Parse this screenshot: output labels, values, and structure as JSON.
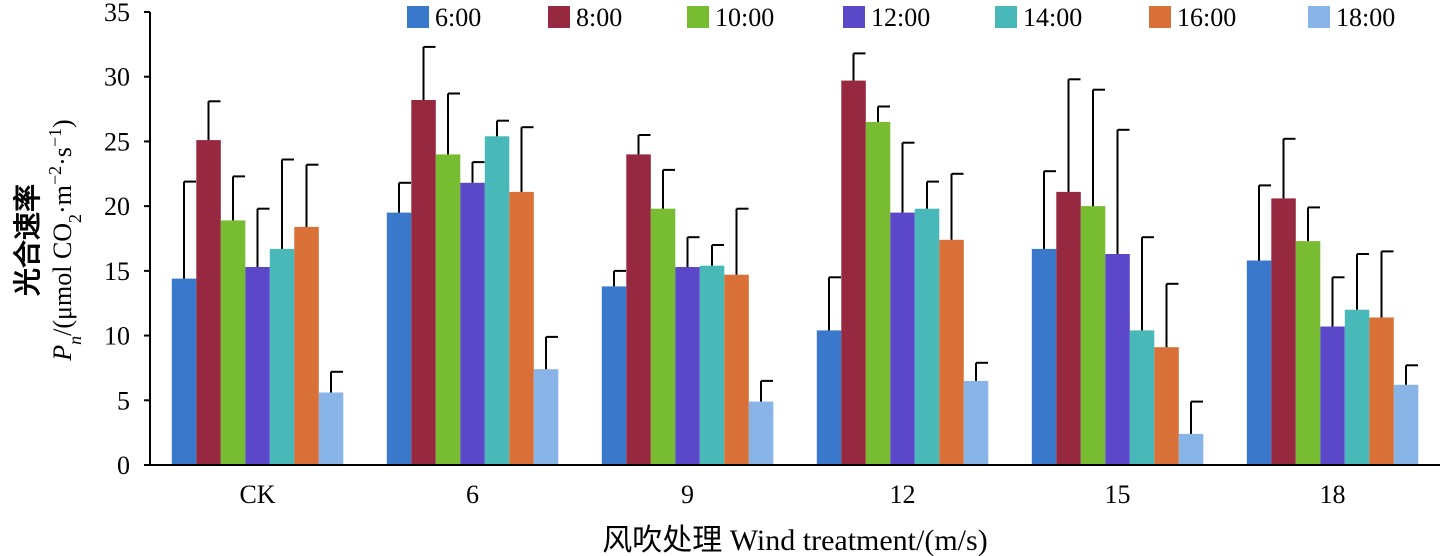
{
  "chart_data": {
    "type": "bar",
    "xlabel": "风吹处理 Wind treatment/(m/s)",
    "ylabel_line1": "光合速率",
    "ylabel_line2": "Pn/(μmol CO2·m-2·s-1)",
    "ylim": [
      0,
      35
    ],
    "yticks": [
      0,
      5,
      10,
      15,
      20,
      25,
      30,
      35
    ],
    "categories": [
      "CK",
      "6",
      "9",
      "12",
      "15",
      "18"
    ],
    "legend_position": "top",
    "grid": false,
    "series": [
      {
        "name": "6:00",
        "color": "#3a78cc",
        "values": [
          14.4,
          19.5,
          13.8,
          10.4,
          16.7,
          15.8
        ],
        "errors": [
          7.5,
          2.3,
          1.2,
          4.1,
          6.0,
          5.8
        ]
      },
      {
        "name": "8:00",
        "color": "#962840",
        "values": [
          25.1,
          28.2,
          24.0,
          29.7,
          21.1,
          20.6
        ],
        "errors": [
          3.0,
          4.1,
          1.5,
          2.1,
          8.7,
          4.6
        ]
      },
      {
        "name": "10:00",
        "color": "#78bc32",
        "values": [
          18.9,
          24.0,
          19.8,
          26.5,
          20.0,
          17.3
        ],
        "errors": [
          3.4,
          4.7,
          3.0,
          1.2,
          9.0,
          2.6
        ]
      },
      {
        "name": "12:00",
        "color": "#5b48c8",
        "values": [
          15.3,
          21.8,
          15.3,
          19.5,
          16.3,
          10.7
        ],
        "errors": [
          4.5,
          1.6,
          2.3,
          5.4,
          9.6,
          3.8
        ]
      },
      {
        "name": "14:00",
        "color": "#48b8b8",
        "values": [
          16.7,
          25.4,
          15.4,
          19.8,
          10.4,
          12.0
        ],
        "errors": [
          6.9,
          1.2,
          1.6,
          2.1,
          7.2,
          4.3
        ]
      },
      {
        "name": "16:00",
        "color": "#d87038",
        "values": [
          18.4,
          21.1,
          14.7,
          17.4,
          9.1,
          11.4
        ],
        "errors": [
          4.8,
          5.0,
          5.1,
          5.1,
          4.9,
          5.1
        ]
      },
      {
        "name": "18:00",
        "color": "#88b4e8",
        "values": [
          5.6,
          7.4,
          4.9,
          6.5,
          2.4,
          6.2
        ],
        "errors": [
          1.6,
          2.5,
          1.6,
          1.4,
          2.5,
          1.5
        ]
      }
    ]
  }
}
